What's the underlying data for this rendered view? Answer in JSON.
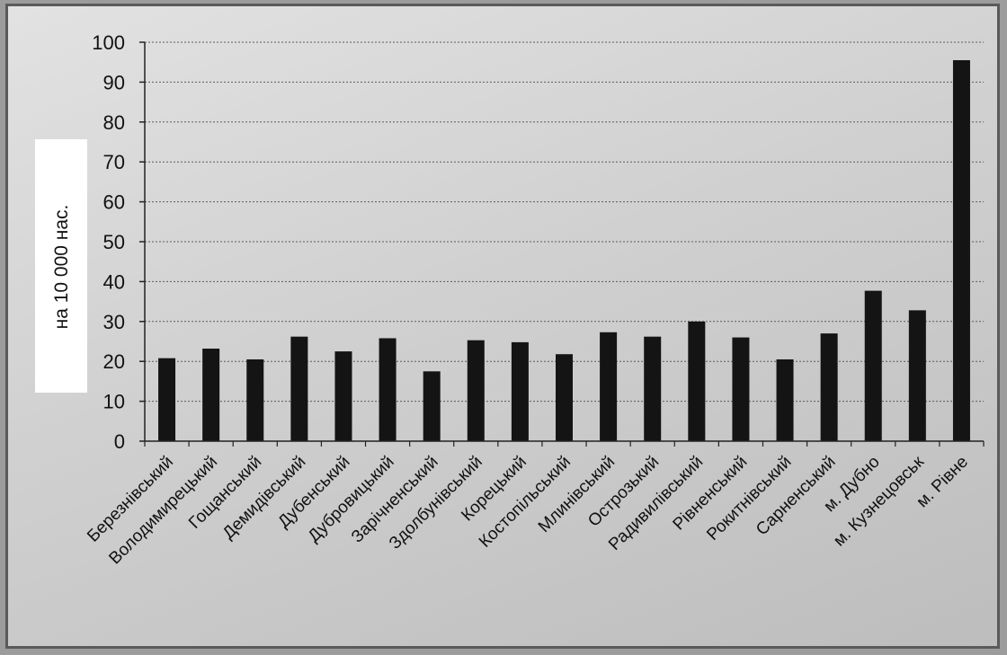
{
  "chart_data": {
    "type": "bar",
    "title": "",
    "xlabel": "",
    "ylabel": "на 10 000 нас.",
    "ylim": [
      0,
      100
    ],
    "yticks": [
      0,
      10,
      20,
      30,
      40,
      50,
      60,
      70,
      80,
      90,
      100
    ],
    "grid": true,
    "bar_color": "#141414",
    "categories": [
      "Березнівський",
      "Володимирецький",
      "Гощанський",
      "Демидівський",
      "Дубенський",
      "Дубровицький",
      "Зарічненський",
      "Здолбунівський",
      "Корецький",
      "Костопільський",
      "Млинівський",
      "Острозький",
      "Радивилівський",
      "Рівненський",
      "Рокитнівський",
      "Сарненський",
      "м. Дубно",
      "м. Кузнецовськ",
      "м. Рівне"
    ],
    "values": [
      20.8,
      23.2,
      20.5,
      26.2,
      22.5,
      25.8,
      17.5,
      25.3,
      24.8,
      21.8,
      27.3,
      26.2,
      30.0,
      26.0,
      20.5,
      27.0,
      37.7,
      32.8,
      95.5
    ]
  }
}
